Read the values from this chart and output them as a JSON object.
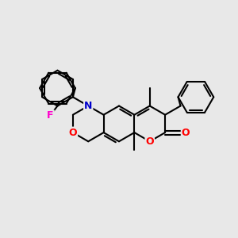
{
  "bg_color": "#e8e8e8",
  "atom_colors": {
    "O": "#ff0000",
    "N": "#0000cc",
    "F": "#ff00cc",
    "C": "#000000"
  },
  "figsize": [
    3.0,
    3.0
  ],
  "dpi": 100,
  "bond_lw": 1.5,
  "bl": 0.38
}
